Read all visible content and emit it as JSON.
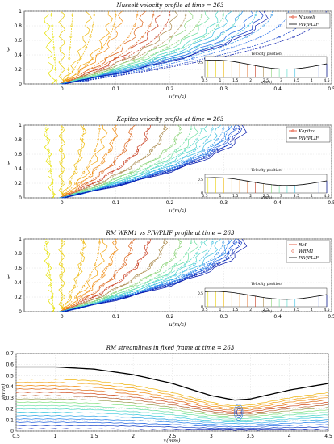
{
  "chart_data": [
    {
      "type": "line",
      "title": "Nusselt velocity profile at time = 263",
      "xlabel": "u(m/s)",
      "ylabel": "y",
      "xlim": [
        -0.07,
        0.5
      ],
      "ylim": [
        0,
        1
      ],
      "xticks": [
        "0",
        "0.1",
        "0.2",
        "0.3",
        "0.4",
        "0.5"
      ],
      "yticks": [
        "0",
        "0.2",
        "0.4",
        "0.6",
        "0.8",
        "1"
      ],
      "grid": true,
      "legend": {
        "position": "top-right",
        "entries": [
          "Nusselt",
          "PIV/PLIF"
        ]
      },
      "series_note": "",
      "umax_model": [
        -0.02,
        0.02,
        0.06,
        0.1,
        0.14,
        0.17,
        0.2,
        0.23,
        0.26,
        0.3,
        0.33,
        0.36,
        0.39,
        0.42,
        0.46,
        0.49
      ],
      "umax_exp": [
        -0.03,
        0.0,
        0.05,
        0.09,
        0.11,
        0.15,
        0.18,
        0.21,
        0.24,
        0.27,
        0.29,
        0.31,
        0.33,
        0.35,
        0.37,
        0.38
      ],
      "inset": {
        "title": "Velocity position",
        "xlabel": "x(mm)",
        "xticks": [
          "0.5",
          "1",
          "1.5",
          "2",
          "2.5",
          "3",
          "3.5",
          "4",
          "4.5"
        ],
        "yticks": [
          "0",
          "0.5"
        ]
      }
    },
    {
      "type": "line",
      "title": "Kapitza velocity profile at time = 263",
      "xlabel": "u(m/s)",
      "ylabel": "y",
      "xlim": [
        -0.07,
        0.5
      ],
      "ylim": [
        0,
        1
      ],
      "xticks": [
        "0",
        "0.1",
        "0.2",
        "0.3",
        "0.4",
        "0.5"
      ],
      "yticks": [
        "0",
        "0.2",
        "0.4",
        "0.6",
        "0.8",
        "1"
      ],
      "grid": true,
      "legend": {
        "position": "top-right",
        "entries": [
          "Kapitza",
          "PIV/PLIF"
        ]
      },
      "umax_model": [
        -0.03,
        0.0,
        0.04,
        0.07,
        0.1,
        0.13,
        0.16,
        0.19,
        0.22,
        0.24,
        0.26,
        0.28,
        0.3,
        0.31,
        0.32,
        0.33
      ],
      "umax_exp": [
        -0.03,
        0.0,
        0.04,
        0.08,
        0.1,
        0.13,
        0.16,
        0.19,
        0.22,
        0.25,
        0.27,
        0.29,
        0.31,
        0.32,
        0.33,
        0.34
      ],
      "inset": {
        "title": "Velocity position",
        "xlabel": "x(mm)",
        "xticks": [
          "0.5",
          "1",
          "1.5",
          "2",
          "2.5",
          "3",
          "3.5",
          "4",
          "4.5"
        ],
        "yticks": [
          "0",
          "0.5"
        ]
      }
    },
    {
      "type": "line",
      "title": "RM WRM1 vs PIV/PLIF profile at time = 263",
      "xlabel": "u(m/s)",
      "ylabel": "y",
      "xlim": [
        -0.07,
        0.5
      ],
      "ylim": [
        0,
        1
      ],
      "xticks": [
        "0",
        "0.1",
        "0.2",
        "0.3",
        "0.4",
        "0.5"
      ],
      "yticks": [
        "0",
        "0.2",
        "0.4",
        "0.6",
        "0.8",
        "1"
      ],
      "grid": true,
      "legend": {
        "position": "top-right",
        "entries": [
          "RM",
          "WRM1",
          "PIV/PLIF"
        ]
      },
      "umax_model": [
        -0.03,
        0.0,
        0.04,
        0.07,
        0.1,
        0.13,
        0.16,
        0.19,
        0.22,
        0.24,
        0.26,
        0.28,
        0.3,
        0.31,
        0.32,
        0.33
      ],
      "umax_exp": [
        -0.03,
        0.0,
        0.04,
        0.08,
        0.1,
        0.13,
        0.16,
        0.19,
        0.22,
        0.25,
        0.27,
        0.29,
        0.31,
        0.32,
        0.33,
        0.34
      ],
      "inset": {
        "title": "Velocity position",
        "xlabel": "x(mm)",
        "xticks": [
          "0.5",
          "1",
          "1.5",
          "2",
          "2.5",
          "3",
          "3.5",
          "4",
          "4.5"
        ],
        "yticks": [
          "0",
          "0.5"
        ]
      }
    },
    {
      "type": "line",
      "title": "RM streamlines in fixed frame at time = 263",
      "xlabel": "x(mm)",
      "ylabel": "y(mm)",
      "xlim": [
        0.5,
        4.5
      ],
      "ylim": [
        0,
        0.7
      ],
      "xticks": [
        "0.5",
        "1",
        "1.5",
        "2",
        "2.5",
        "3",
        "3.5",
        "4",
        "4.5"
      ],
      "yticks": [
        "0",
        "0.1",
        "0.2",
        "0.3",
        "0.4",
        "0.5",
        "0.6",
        "0.7"
      ],
      "grid": true,
      "film_height": {
        "x": [
          0.5,
          1,
          1.5,
          2,
          2.5,
          3,
          3.3,
          3.5,
          4,
          4.5
        ],
        "h": [
          0.58,
          0.58,
          0.56,
          0.51,
          0.43,
          0.32,
          0.28,
          0.29,
          0.37,
          0.43
        ]
      },
      "streamline_levels": [
        0.02,
        0.05,
        0.08,
        0.11,
        0.14,
        0.17,
        0.2,
        0.23,
        0.26,
        0.29,
        0.32,
        0.35,
        0.38,
        0.41,
        0.44,
        0.47
      ]
    }
  ]
}
